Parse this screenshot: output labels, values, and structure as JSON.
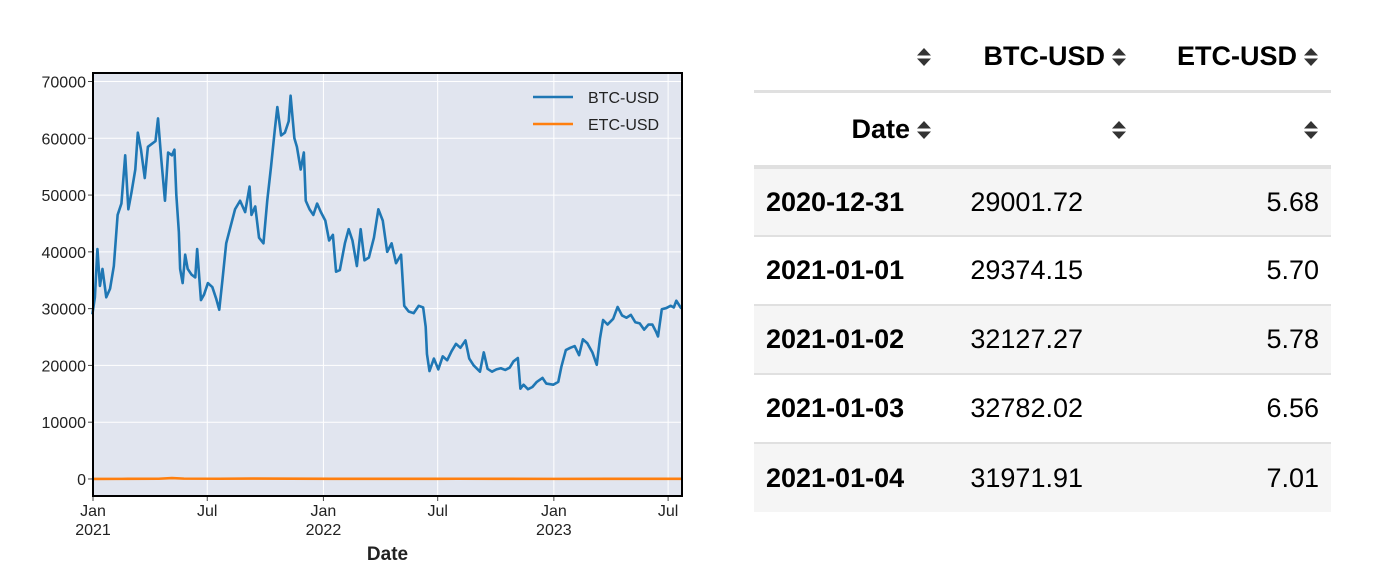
{
  "chart_data": {
    "type": "line",
    "xlabel": "Date",
    "ylabel": "",
    "xlim": [
      "2021-01-01",
      "2023-07-23"
    ],
    "ylim": [
      -3000,
      71500
    ],
    "yticks": [
      0,
      10000,
      20000,
      30000,
      40000,
      50000,
      60000,
      70000
    ],
    "xticks": [
      {
        "date": "2021-01-01",
        "label": [
          "Jan",
          "2021"
        ]
      },
      {
        "date": "2021-07-01",
        "label": [
          "Jul"
        ]
      },
      {
        "date": "2022-01-01",
        "label": [
          "Jan",
          "2022"
        ]
      },
      {
        "date": "2022-07-01",
        "label": [
          "Jul"
        ]
      },
      {
        "date": "2023-01-01",
        "label": [
          "Jan",
          "2023"
        ]
      },
      {
        "date": "2023-07-01",
        "label": [
          "Jul"
        ]
      }
    ],
    "grid": true,
    "legend_position": "top-right",
    "series": [
      {
        "name": "BTC-USD",
        "color": "#1f77b4",
        "points": [
          [
            "2020-12-31",
            29000
          ],
          [
            "2021-01-04",
            32000
          ],
          [
            "2021-01-08",
            40500
          ],
          [
            "2021-01-12",
            34000
          ],
          [
            "2021-01-16",
            37000
          ],
          [
            "2021-01-22",
            32000
          ],
          [
            "2021-01-28",
            33500
          ],
          [
            "2021-02-03",
            37500
          ],
          [
            "2021-02-09",
            46500
          ],
          [
            "2021-02-15",
            48500
          ],
          [
            "2021-02-21",
            57000
          ],
          [
            "2021-02-26",
            47500
          ],
          [
            "2021-03-03",
            50500
          ],
          [
            "2021-03-09",
            54500
          ],
          [
            "2021-03-13",
            61000
          ],
          [
            "2021-03-18",
            58000
          ],
          [
            "2021-03-24",
            53000
          ],
          [
            "2021-03-29",
            58500
          ],
          [
            "2021-04-04",
            59000
          ],
          [
            "2021-04-10",
            59500
          ],
          [
            "2021-04-14",
            63500
          ],
          [
            "2021-04-19",
            56500
          ],
          [
            "2021-04-25",
            49000
          ],
          [
            "2021-04-30",
            57500
          ],
          [
            "2021-05-06",
            57000
          ],
          [
            "2021-05-10",
            58000
          ],
          [
            "2021-05-13",
            50000
          ],
          [
            "2021-05-17",
            43500
          ],
          [
            "2021-05-19",
            37000
          ],
          [
            "2021-05-23",
            34500
          ],
          [
            "2021-05-27",
            39500
          ],
          [
            "2021-05-31",
            37000
          ],
          [
            "2021-06-06",
            36000
          ],
          [
            "2021-06-12",
            35500
          ],
          [
            "2021-06-15",
            40500
          ],
          [
            "2021-06-21",
            31500
          ],
          [
            "2021-06-26",
            32500
          ],
          [
            "2021-07-02",
            34500
          ],
          [
            "2021-07-09",
            33800
          ],
          [
            "2021-07-15",
            31800
          ],
          [
            "2021-07-20",
            29800
          ],
          [
            "2021-07-25",
            35000
          ],
          [
            "2021-07-31",
            41500
          ],
          [
            "2021-08-07",
            44500
          ],
          [
            "2021-08-14",
            47500
          ],
          [
            "2021-08-22",
            49000
          ],
          [
            "2021-08-30",
            47000
          ],
          [
            "2021-09-06",
            51500
          ],
          [
            "2021-09-09",
            46500
          ],
          [
            "2021-09-15",
            48000
          ],
          [
            "2021-09-21",
            42500
          ],
          [
            "2021-09-28",
            41500
          ],
          [
            "2021-10-04",
            49000
          ],
          [
            "2021-10-10",
            55000
          ],
          [
            "2021-10-16",
            61500
          ],
          [
            "2021-10-20",
            65500
          ],
          [
            "2021-10-26",
            60500
          ],
          [
            "2021-11-01",
            61000
          ],
          [
            "2021-11-07",
            63000
          ],
          [
            "2021-11-10",
            67500
          ],
          [
            "2021-11-16",
            60000
          ],
          [
            "2021-11-20",
            58500
          ],
          [
            "2021-11-26",
            54500
          ],
          [
            "2021-12-01",
            57500
          ],
          [
            "2021-12-04",
            49000
          ],
          [
            "2021-12-10",
            47500
          ],
          [
            "2021-12-16",
            46500
          ],
          [
            "2021-12-22",
            48500
          ],
          [
            "2021-12-28",
            47000
          ],
          [
            "2022-01-04",
            45500
          ],
          [
            "2022-01-10",
            42000
          ],
          [
            "2022-01-16",
            43000
          ],
          [
            "2022-01-21",
            36500
          ],
          [
            "2022-01-27",
            36800
          ],
          [
            "2022-02-04",
            41500
          ],
          [
            "2022-02-10",
            44000
          ],
          [
            "2022-02-16",
            42000
          ],
          [
            "2022-02-23",
            37500
          ],
          [
            "2022-03-01",
            44000
          ],
          [
            "2022-03-07",
            38500
          ],
          [
            "2022-03-14",
            39000
          ],
          [
            "2022-03-22",
            42500
          ],
          [
            "2022-03-29",
            47500
          ],
          [
            "2022-04-05",
            45500
          ],
          [
            "2022-04-12",
            40000
          ],
          [
            "2022-04-19",
            41500
          ],
          [
            "2022-04-26",
            38000
          ],
          [
            "2022-05-04",
            39500
          ],
          [
            "2022-05-09",
            30500
          ],
          [
            "2022-05-16",
            29500
          ],
          [
            "2022-05-24",
            29200
          ],
          [
            "2022-06-01",
            30500
          ],
          [
            "2022-06-08",
            30200
          ],
          [
            "2022-06-12",
            26800
          ],
          [
            "2022-06-14",
            22000
          ],
          [
            "2022-06-18",
            19000
          ],
          [
            "2022-06-25",
            21200
          ],
          [
            "2022-07-02",
            19300
          ],
          [
            "2022-07-09",
            21600
          ],
          [
            "2022-07-16",
            20900
          ],
          [
            "2022-07-23",
            22500
          ],
          [
            "2022-07-30",
            23800
          ],
          [
            "2022-08-06",
            23100
          ],
          [
            "2022-08-14",
            24400
          ],
          [
            "2022-08-20",
            21200
          ],
          [
            "2022-08-27",
            20000
          ],
          [
            "2022-09-06",
            18900
          ],
          [
            "2022-09-12",
            22300
          ],
          [
            "2022-09-18",
            19400
          ],
          [
            "2022-09-25",
            18900
          ],
          [
            "2022-10-02",
            19300
          ],
          [
            "2022-10-09",
            19500
          ],
          [
            "2022-10-16",
            19200
          ],
          [
            "2022-10-23",
            19600
          ],
          [
            "2022-10-29",
            20700
          ],
          [
            "2022-11-05",
            21300
          ],
          [
            "2022-11-09",
            15900
          ],
          [
            "2022-11-14",
            16600
          ],
          [
            "2022-11-21",
            15800
          ],
          [
            "2022-11-28",
            16200
          ],
          [
            "2022-12-05",
            17100
          ],
          [
            "2022-12-14",
            17800
          ],
          [
            "2022-12-20",
            16800
          ],
          [
            "2022-12-31",
            16600
          ],
          [
            "2023-01-08",
            17100
          ],
          [
            "2023-01-13",
            19800
          ],
          [
            "2023-01-20",
            22700
          ],
          [
            "2023-01-27",
            23100
          ],
          [
            "2023-02-03",
            23400
          ],
          [
            "2023-02-10",
            21800
          ],
          [
            "2023-02-16",
            24600
          ],
          [
            "2023-02-23",
            23900
          ],
          [
            "2023-03-03",
            22300
          ],
          [
            "2023-03-10",
            20100
          ],
          [
            "2023-03-15",
            24700
          ],
          [
            "2023-03-20",
            28000
          ],
          [
            "2023-03-27",
            27200
          ],
          [
            "2023-04-05",
            28200
          ],
          [
            "2023-04-12",
            30300
          ],
          [
            "2023-04-19",
            28800
          ],
          [
            "2023-04-26",
            28400
          ],
          [
            "2023-05-03",
            28900
          ],
          [
            "2023-05-10",
            27600
          ],
          [
            "2023-05-17",
            27400
          ],
          [
            "2023-05-24",
            26300
          ],
          [
            "2023-05-31",
            27200
          ],
          [
            "2023-06-06",
            27200
          ],
          [
            "2023-06-12",
            25900
          ],
          [
            "2023-06-15",
            25100
          ],
          [
            "2023-06-21",
            29900
          ],
          [
            "2023-06-28",
            30100
          ],
          [
            "2023-07-05",
            30500
          ],
          [
            "2023-07-10",
            30200
          ],
          [
            "2023-07-14",
            31400
          ],
          [
            "2023-07-22",
            30000
          ]
        ]
      },
      {
        "name": "ETC-USD",
        "color": "#ff7f0e",
        "points": [
          [
            "2020-12-31",
            5.68
          ],
          [
            "2021-02-15",
            15
          ],
          [
            "2021-04-15",
            40
          ],
          [
            "2021-05-06",
            150
          ],
          [
            "2021-05-25",
            60
          ],
          [
            "2021-07-20",
            40
          ],
          [
            "2021-09-10",
            70
          ],
          [
            "2021-11-10",
            55
          ],
          [
            "2022-01-15",
            30
          ],
          [
            "2022-05-01",
            30
          ],
          [
            "2022-07-01",
            18
          ],
          [
            "2022-08-01",
            40
          ],
          [
            "2022-10-01",
            30
          ],
          [
            "2023-01-01",
            16
          ],
          [
            "2023-04-01",
            20
          ],
          [
            "2023-07-22",
            18
          ]
        ]
      }
    ]
  },
  "table": {
    "columns": [
      {
        "label": ""
      },
      {
        "label": "BTC-USD"
      },
      {
        "label": "ETC-USD"
      }
    ],
    "index_name": "Date",
    "rows": [
      {
        "date": "2020-12-31",
        "btc": "29001.72",
        "etc": "5.68"
      },
      {
        "date": "2021-01-01",
        "btc": "29374.15",
        "etc": "5.70"
      },
      {
        "date": "2021-01-02",
        "btc": "32127.27",
        "etc": "5.78"
      },
      {
        "date": "2021-01-03",
        "btc": "32782.02",
        "etc": "6.56"
      },
      {
        "date": "2021-01-04",
        "btc": "31971.91",
        "etc": "7.01"
      }
    ]
  }
}
